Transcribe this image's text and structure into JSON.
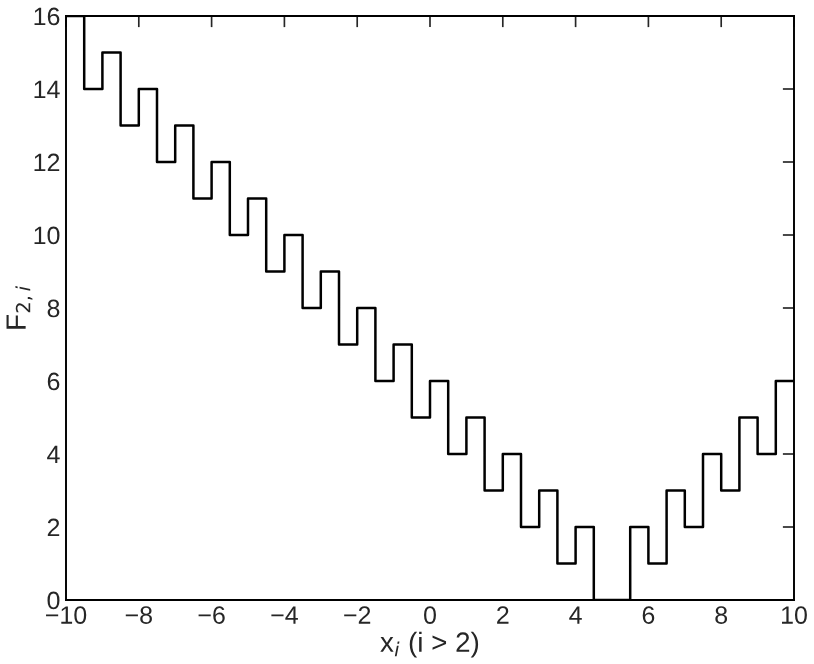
{
  "chart_data": {
    "type": "step",
    "xlabel": "x$_{i}$ (i > 2)",
    "ylabel": "F$_{2,i}$",
    "x": [
      -10,
      -9.5,
      -9,
      -8.5,
      -8,
      -7.5,
      -7,
      -6.5,
      -6,
      -5.5,
      -5,
      -4.5,
      -4,
      -3.5,
      -3,
      -2.5,
      -2,
      -1.5,
      -1,
      -0.5,
      0,
      0.5,
      1,
      1.5,
      2,
      2.5,
      3,
      3.5,
      4,
      4.5,
      5,
      5.5,
      6,
      6.5,
      7,
      7.5,
      8,
      8.5,
      9,
      9.5,
      10
    ],
    "series": [
      {
        "color": "#000000",
        "values": [
          16,
          14,
          15,
          13,
          14,
          12,
          13,
          11,
          12,
          10,
          11,
          9,
          10,
          8,
          9,
          7,
          8,
          6,
          7,
          5,
          6,
          4,
          5,
          3,
          4,
          2,
          3,
          1,
          2,
          0,
          0,
          2,
          1,
          3,
          2,
          4,
          3,
          5,
          4,
          6,
          6
        ]
      }
    ],
    "xlim": [
      -10,
      10
    ],
    "ylim": [
      0,
      16
    ],
    "xticks": [
      {
        "value": -10,
        "label": "−10"
      },
      {
        "value": -8,
        "label": "−8"
      },
      {
        "value": -6,
        "label": "−6"
      },
      {
        "value": -4,
        "label": "−4"
      },
      {
        "value": -2,
        "label": "−2"
      },
      0,
      2,
      4,
      6,
      8,
      10
    ],
    "yticks": [
      0,
      2,
      4,
      6,
      8,
      10,
      12,
      14,
      16
    ],
    "grid": false,
    "legend": false,
    "line_style": "solid",
    "marker": "none"
  }
}
